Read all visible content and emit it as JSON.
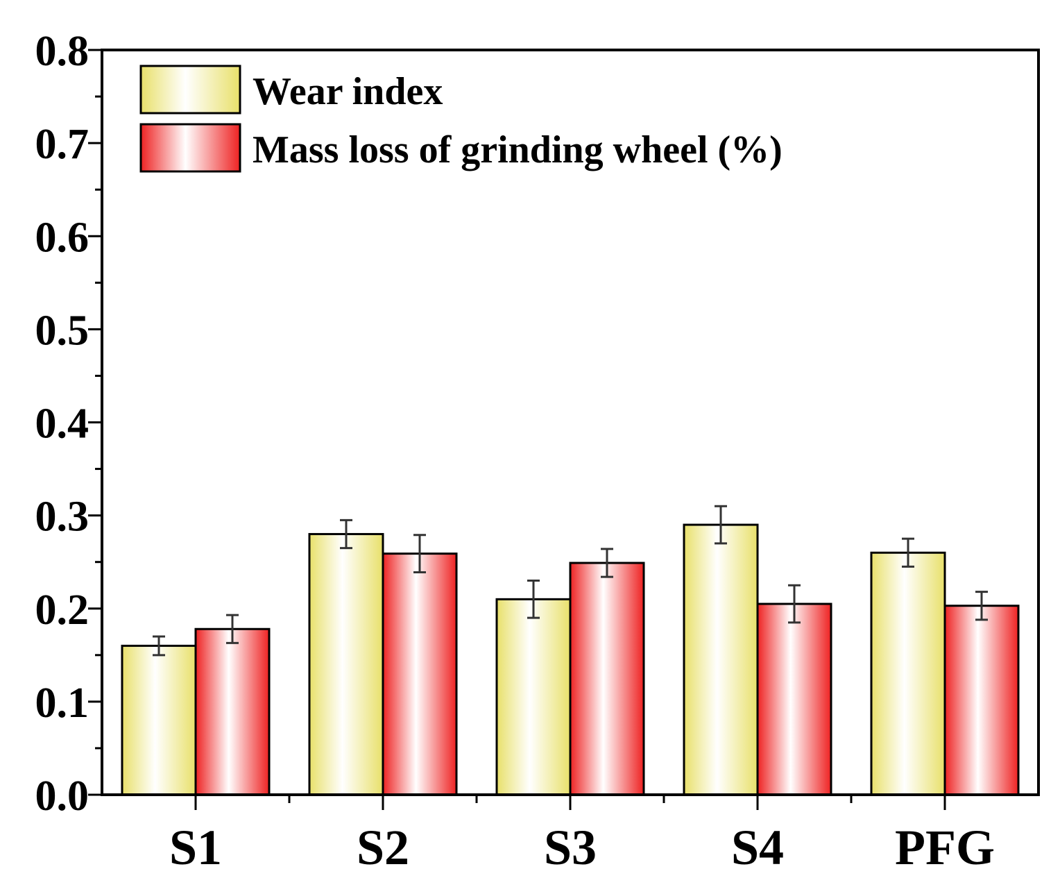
{
  "chart_data": {
    "type": "bar",
    "title": "",
    "xlabel": "",
    "ylabel": "",
    "categories": [
      "S1",
      "S2",
      "S3",
      "S4",
      "PFG"
    ],
    "ylim": [
      0,
      0.8
    ],
    "yticks": [
      "0.0",
      "0.1",
      "0.2",
      "0.3",
      "0.4",
      "0.5",
      "0.6",
      "0.7",
      "0.8"
    ],
    "grid": false,
    "legend_position": "top-left",
    "series": [
      {
        "name": "Wear index",
        "color": "#e8e06a",
        "values": [
          0.16,
          0.28,
          0.21,
          0.29,
          0.26
        ],
        "errors": [
          0.01,
          0.015,
          0.02,
          0.02,
          0.015
        ]
      },
      {
        "name": "Mass loss of grinding wheel (%)",
        "color": "#ee2222",
        "values": [
          0.178,
          0.259,
          0.249,
          0.205,
          0.203
        ],
        "errors": [
          0.015,
          0.02,
          0.015,
          0.02,
          0.015
        ]
      }
    ]
  }
}
